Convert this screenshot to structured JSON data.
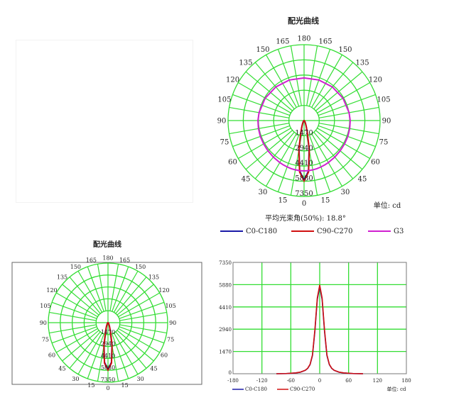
{
  "chart_data": [
    {
      "type": "polar",
      "title": "配光曲线",
      "unit_label": "单位: cd",
      "beam_angle_label": "平均光束角(50%): 18.8°",
      "angle_labels": [
        "0",
        "15",
        "30",
        "45",
        "60",
        "75",
        "90",
        "105",
        "120",
        "135",
        "150",
        "165",
        "180"
      ],
      "radial_ticks": [
        "1470",
        "2940",
        "4410",
        "5880",
        "7350"
      ],
      "r_max": 7350,
      "angles": [
        0,
        5,
        10,
        15,
        20,
        25,
        30,
        40,
        50,
        60,
        70,
        80,
        90,
        100,
        120,
        140,
        160,
        180
      ],
      "series": [
        {
          "name": "C0-C180",
          "color": "#1a1aa8",
          "values": [
            5750,
            4900,
            2800,
            1200,
            600,
            350,
            220,
            100,
            50,
            25,
            10,
            5,
            0,
            0,
            0,
            0,
            0,
            0
          ]
        },
        {
          "name": "C90-C270",
          "color": "#d01010",
          "values": [
            5850,
            5000,
            2900,
            1250,
            620,
            360,
            230,
            110,
            55,
            28,
            12,
            6,
            0,
            0,
            0,
            0,
            0,
            0
          ]
        },
        {
          "name": "G3",
          "color": "#d020d0",
          "values": [
            4880,
            4870,
            4850,
            4820,
            4780,
            4740,
            4700,
            4620,
            4560,
            4520,
            4500,
            4480,
            4460,
            4420,
            4340,
            4250,
            4180,
            4130
          ]
        }
      ]
    },
    {
      "type": "polar",
      "title": "配光曲线",
      "angle_labels": [
        "0",
        "15",
        "30",
        "45",
        "60",
        "75",
        "90",
        "105",
        "120",
        "135",
        "150",
        "165",
        "180"
      ],
      "radial_ticks": [
        "1470",
        "2940",
        "4410",
        "5880",
        "7350"
      ],
      "r_max": 7350,
      "angles": [
        0,
        5,
        10,
        15,
        20,
        25,
        30,
        40,
        50,
        60,
        70,
        80,
        90
      ],
      "series": [
        {
          "name": "C0-C180",
          "color": "#1a1aa8",
          "values": [
            5750,
            4900,
            2800,
            1200,
            600,
            350,
            220,
            100,
            50,
            25,
            10,
            5,
            0
          ]
        },
        {
          "name": "C90-C270",
          "color": "#d01010",
          "values": [
            5850,
            5000,
            2900,
            1250,
            620,
            360,
            230,
            110,
            55,
            28,
            12,
            6,
            0
          ]
        }
      ]
    },
    {
      "type": "line",
      "xlabel": "",
      "ylabel": "",
      "unit_label": "单位: cd",
      "xlim": [
        -180,
        180
      ],
      "ylim": [
        0,
        7350
      ],
      "x_ticks": [
        "-180",
        "-120",
        "-60",
        "0",
        "60",
        "120",
        "180"
      ],
      "y_ticks": [
        "0",
        "1470",
        "2940",
        "4410",
        "5880",
        "7350"
      ],
      "x": [
        -90,
        -70,
        -50,
        -40,
        -30,
        -25,
        -20,
        -15,
        -10,
        -5,
        0,
        5,
        10,
        15,
        20,
        25,
        30,
        40,
        50,
        70,
        90
      ],
      "series": [
        {
          "name": "C0-C180",
          "color": "#1a1aa8",
          "values": [
            0,
            10,
            50,
            100,
            220,
            350,
            600,
            1200,
            2800,
            4900,
            5750,
            4900,
            2800,
            1200,
            600,
            350,
            220,
            100,
            50,
            10,
            0
          ]
        },
        {
          "name": "C90-C270",
          "color": "#d01010",
          "values": [
            0,
            12,
            55,
            110,
            230,
            360,
            620,
            1250,
            2900,
            5000,
            5850,
            5000,
            2900,
            1250,
            620,
            360,
            230,
            110,
            55,
            12,
            0
          ]
        }
      ]
    }
  ]
}
